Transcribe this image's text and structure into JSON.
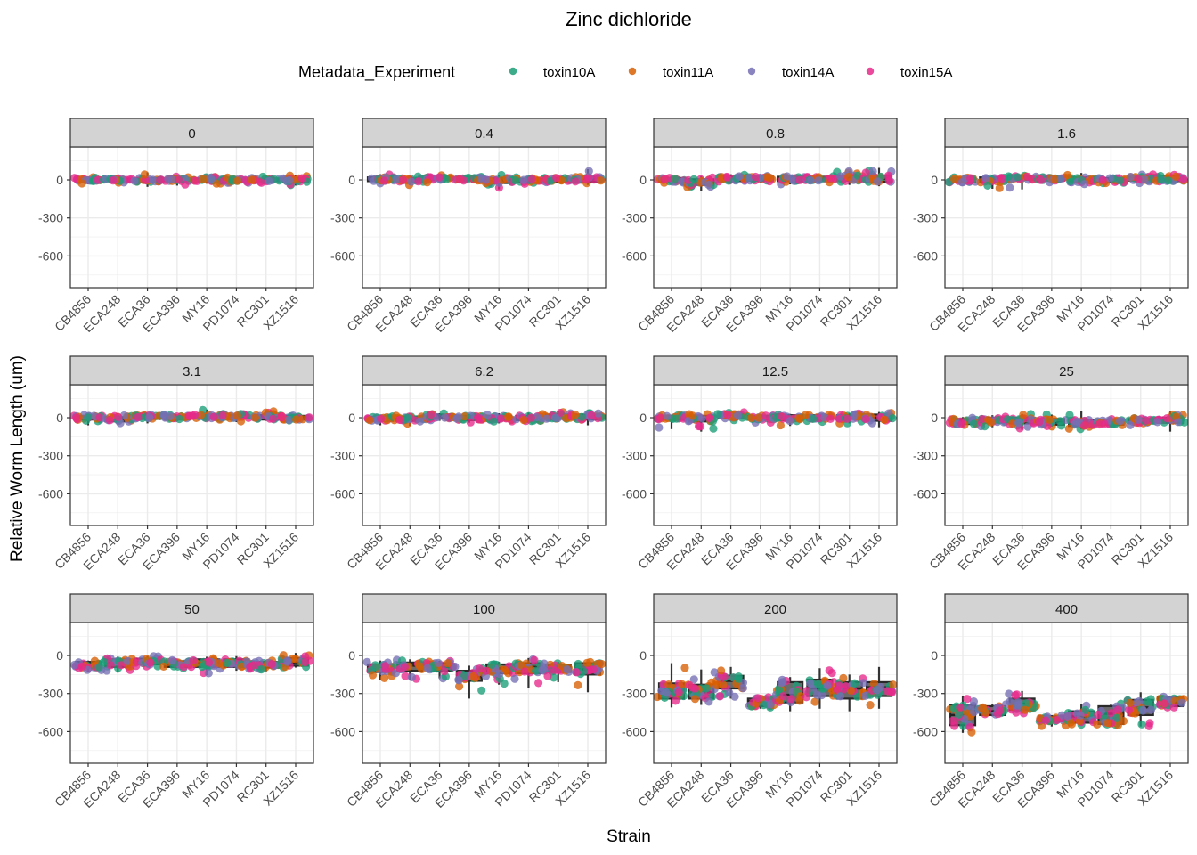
{
  "chart_data": {
    "type": "scatter",
    "subtype": "faceted jitter + boxplot",
    "title": "Zinc dichloride",
    "xlabel": "Strain",
    "ylabel": "Relative Worm Length (um)",
    "ylim": [
      -850,
      260
    ],
    "yticks": [
      0,
      -300,
      -600
    ],
    "ytick_labels": [
      "0",
      "-300",
      "-600"
    ],
    "grid": true,
    "legend": {
      "title": "Metadata_Experiment",
      "position": "top",
      "entries": [
        {
          "name": "toxin10A",
          "color": "#1B9E77"
        },
        {
          "name": "toxin11A",
          "color": "#D95F02"
        },
        {
          "name": "toxin14A",
          "color": "#7570B3"
        },
        {
          "name": "toxin15A",
          "color": "#E7298A"
        }
      ]
    },
    "categories": [
      "CB4856",
      "ECA248",
      "ECA36",
      "ECA396",
      "MY16",
      "PD1074",
      "RC301",
      "XZ1516"
    ],
    "facet_by": "concentration",
    "facets": [
      {
        "label": "0",
        "median": [
          0,
          0,
          0,
          0,
          0,
          0,
          0,
          0
        ],
        "q1": [
          -10,
          -10,
          -15,
          -10,
          -10,
          -10,
          -10,
          -15
        ],
        "q3": [
          10,
          10,
          15,
          10,
          10,
          10,
          10,
          15
        ],
        "min": [
          -35,
          -25,
          -55,
          -45,
          -30,
          -25,
          -30,
          -45
        ],
        "max": [
          25,
          25,
          60,
          30,
          25,
          20,
          40,
          40
        ]
      },
      {
        "label": "0.4",
        "median": [
          5,
          0,
          15,
          10,
          -5,
          -5,
          0,
          5
        ],
        "q1": [
          -10,
          -15,
          0,
          0,
          -25,
          -15,
          -15,
          -15
        ],
        "q3": [
          20,
          15,
          25,
          20,
          15,
          10,
          15,
          25
        ],
        "min": [
          -35,
          -40,
          -20,
          -10,
          -75,
          -35,
          -20,
          -40
        ],
        "max": [
          45,
          30,
          45,
          25,
          40,
          25,
          15,
          85
        ]
      },
      {
        "label": "0.8",
        "median": [
          0,
          -20,
          5,
          10,
          10,
          10,
          15,
          10
        ],
        "q1": [
          -15,
          -40,
          -10,
          -5,
          -10,
          -5,
          -5,
          -15
        ],
        "q3": [
          15,
          5,
          25,
          25,
          25,
          25,
          35,
          35
        ],
        "min": [
          -30,
          -90,
          -25,
          -20,
          -35,
          -20,
          -40,
          -50
        ],
        "max": [
          20,
          30,
          45,
          35,
          35,
          40,
          70,
          95
        ]
      },
      {
        "label": "1.6",
        "median": [
          0,
          0,
          15,
          10,
          0,
          0,
          10,
          10
        ],
        "q1": [
          -15,
          -20,
          0,
          -5,
          -20,
          -20,
          -5,
          -10
        ],
        "q3": [
          15,
          20,
          30,
          25,
          20,
          15,
          25,
          30
        ],
        "min": [
          -20,
          -70,
          -75,
          -20,
          -40,
          -25,
          -30,
          -20
        ],
        "max": [
          20,
          40,
          45,
          30,
          55,
          30,
          45,
          45
        ]
      },
      {
        "label": "3.1",
        "median": [
          0,
          -10,
          10,
          0,
          10,
          10,
          5,
          0
        ],
        "q1": [
          -15,
          -30,
          -10,
          -15,
          -5,
          -5,
          -15,
          -15
        ],
        "q3": [
          15,
          5,
          20,
          15,
          25,
          20,
          20,
          15
        ],
        "min": [
          -60,
          -50,
          -45,
          -25,
          -20,
          -35,
          -25,
          -25
        ],
        "max": [
          25,
          20,
          30,
          25,
          65,
          30,
          55,
          25
        ]
      },
      {
        "label": "6.2",
        "median": [
          -10,
          -10,
          10,
          0,
          0,
          -5,
          10,
          5
        ],
        "q1": [
          -25,
          -25,
          -5,
          -20,
          -20,
          -20,
          -10,
          -15
        ],
        "q3": [
          5,
          10,
          25,
          15,
          15,
          15,
          25,
          25
        ],
        "min": [
          -60,
          -65,
          -25,
          -40,
          -45,
          -30,
          -35,
          -60
        ],
        "max": [
          15,
          20,
          35,
          30,
          35,
          40,
          55,
          40
        ]
      },
      {
        "label": "12.5",
        "median": [
          0,
          -10,
          10,
          0,
          0,
          5,
          5,
          0
        ],
        "q1": [
          -15,
          -30,
          -5,
          -15,
          -20,
          -10,
          -10,
          -25
        ],
        "q3": [
          15,
          15,
          30,
          15,
          20,
          20,
          20,
          25
        ],
        "min": [
          -90,
          -110,
          -25,
          -40,
          -65,
          -35,
          -45,
          -75
        ],
        "max": [
          20,
          30,
          45,
          20,
          30,
          30,
          35,
          45
        ]
      },
      {
        "label": "25",
        "median": [
          -30,
          -20,
          -20,
          -35,
          -45,
          -40,
          -25,
          -20
        ],
        "q1": [
          -50,
          -40,
          -45,
          -55,
          -65,
          -55,
          -40,
          -40
        ],
        "q3": [
          -10,
          0,
          0,
          -10,
          -15,
          -20,
          -10,
          0
        ],
        "min": [
          -70,
          -75,
          -95,
          -70,
          -90,
          -60,
          -60,
          -110
        ],
        "max": [
          5,
          20,
          30,
          25,
          50,
          10,
          0,
          55
        ]
      },
      {
        "label": "50",
        "median": [
          -70,
          -60,
          -50,
          -70,
          -60,
          -60,
          -70,
          -55
        ],
        "q1": [
          -95,
          -90,
          -70,
          -90,
          -90,
          -90,
          -95,
          -80
        ],
        "q3": [
          -50,
          -30,
          -25,
          -45,
          -30,
          -30,
          -50,
          -20
        ],
        "min": [
          -130,
          -135,
          -90,
          -100,
          -155,
          -120,
          -125,
          -95
        ],
        "max": [
          -40,
          -10,
          -5,
          -30,
          -10,
          -5,
          -40,
          20
        ]
      },
      {
        "label": "100",
        "median": [
          -100,
          -80,
          -90,
          -170,
          -100,
          -90,
          -100,
          -110
        ],
        "q1": [
          -130,
          -120,
          -120,
          -200,
          -140,
          -140,
          -130,
          -150
        ],
        "q3": [
          -70,
          -55,
          -60,
          -120,
          -70,
          -60,
          -75,
          -60
        ],
        "min": [
          -190,
          -190,
          -180,
          -340,
          -230,
          -260,
          -210,
          -290
        ],
        "max": [
          -40,
          -30,
          -40,
          -80,
          -50,
          -20,
          -50,
          -50
        ]
      },
      {
        "label": "200",
        "median": [
          -280,
          -290,
          -200,
          -360,
          -310,
          -260,
          -260,
          -250
        ],
        "q1": [
          -340,
          -340,
          -260,
          -400,
          -370,
          -320,
          -340,
          -320
        ],
        "q3": [
          -220,
          -230,
          -160,
          -340,
          -210,
          -190,
          -210,
          -210
        ],
        "min": [
          -410,
          -390,
          -340,
          -420,
          -440,
          -420,
          -440,
          -420
        ],
        "max": [
          -60,
          -110,
          -90,
          -330,
          -170,
          -100,
          -150,
          -90
        ]
      },
      {
        "label": "400",
        "median": [
          -470,
          -440,
          -380,
          -500,
          -480,
          -460,
          -410,
          -370
        ],
        "q1": [
          -550,
          -470,
          -430,
          -520,
          -530,
          -540,
          -470,
          -400
        ],
        "q3": [
          -390,
          -400,
          -340,
          -480,
          -440,
          -400,
          -350,
          -330
        ],
        "min": [
          -610,
          -480,
          -460,
          -560,
          -550,
          -560,
          -560,
          -410
        ],
        "max": [
          -320,
          -380,
          -280,
          -470,
          -380,
          -380,
          -290,
          -320
        ]
      }
    ]
  }
}
